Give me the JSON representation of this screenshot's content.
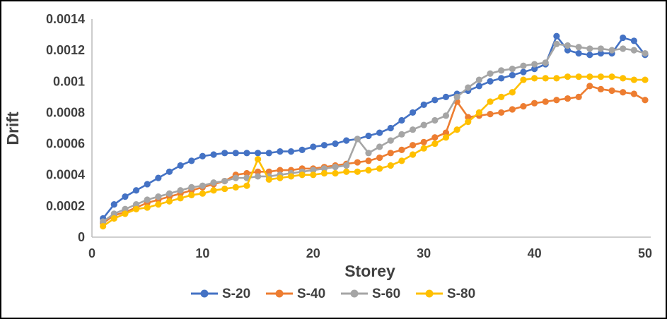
{
  "chart_data": {
    "type": "line",
    "title": "",
    "xlabel": "Storey",
    "ylabel": "Drift",
    "xlim": [
      0,
      50
    ],
    "ylim": [
      0,
      0.0014
    ],
    "grid": false,
    "markers": true,
    "legend_position": "bottom",
    "axis_line_color": "#BFBFBF",
    "text_color": "#404040",
    "x_ticks": [
      {
        "label": "0",
        "v": 0
      },
      {
        "label": "10",
        "v": 10
      },
      {
        "label": "20",
        "v": 20
      },
      {
        "label": "30",
        "v": 30
      },
      {
        "label": "40",
        "v": 40
      },
      {
        "label": "50",
        "v": 50
      }
    ],
    "y_ticks": [
      {
        "label": "0",
        "v": 0
      },
      {
        "label": "0.0002",
        "v": 0.0002
      },
      {
        "label": "0.0004",
        "v": 0.0004
      },
      {
        "label": "0.0006",
        "v": 0.0006
      },
      {
        "label": "0.0008",
        "v": 0.0008
      },
      {
        "label": "0.001",
        "v": 0.001
      },
      {
        "label": "0.0012",
        "v": 0.0012
      },
      {
        "label": "0.0014",
        "v": 0.0014
      }
    ],
    "x_values": [
      1,
      2,
      3,
      4,
      5,
      6,
      7,
      8,
      9,
      10,
      11,
      12,
      13,
      14,
      15,
      16,
      17,
      18,
      19,
      20,
      21,
      22,
      23,
      24,
      25,
      26,
      27,
      28,
      29,
      30,
      31,
      32,
      33,
      34,
      35,
      36,
      37,
      38,
      39,
      40,
      41,
      42,
      43,
      44,
      45,
      46,
      47,
      48,
      49,
      50
    ],
    "series": [
      {
        "name": "S-20",
        "color": "#4472C4",
        "values": [
          0.00012,
          0.00021,
          0.00026,
          0.0003,
          0.00034,
          0.00038,
          0.00042,
          0.00046,
          0.00049,
          0.00052,
          0.00053,
          0.00054,
          0.00054,
          0.00054,
          0.00054,
          0.00054,
          0.00055,
          0.00055,
          0.00056,
          0.00058,
          0.00059,
          0.0006,
          0.00062,
          0.00063,
          0.00065,
          0.00067,
          0.0007,
          0.00075,
          0.0008,
          0.00085,
          0.00088,
          0.0009,
          0.00092,
          0.00094,
          0.00097,
          0.001,
          0.00102,
          0.00104,
          0.00106,
          0.00108,
          0.00111,
          0.00129,
          0.0012,
          0.00118,
          0.00117,
          0.00118,
          0.00118,
          0.00128,
          0.00126,
          0.00117
        ]
      },
      {
        "name": "S-40",
        "color": "#ED7D31",
        "values": [
          9e-05,
          0.00014,
          0.00016,
          0.00019,
          0.00022,
          0.00024,
          0.00026,
          0.00028,
          0.0003,
          0.00032,
          0.00034,
          0.00036,
          0.0004,
          0.00041,
          0.00042,
          0.00042,
          0.00043,
          0.00043,
          0.00044,
          0.00044,
          0.00045,
          0.00046,
          0.00047,
          0.00048,
          0.00049,
          0.00051,
          0.00054,
          0.00056,
          0.00059,
          0.00061,
          0.00064,
          0.00067,
          0.00087,
          0.00077,
          0.00078,
          0.00079,
          0.0008,
          0.00082,
          0.00084,
          0.00086,
          0.00087,
          0.00088,
          0.00089,
          0.0009,
          0.00097,
          0.00095,
          0.00094,
          0.00093,
          0.00092,
          0.00088
        ]
      },
      {
        "name": "S-60",
        "color": "#A5A5A5",
        "values": [
          0.0001,
          0.00015,
          0.00018,
          0.00021,
          0.00024,
          0.00026,
          0.00028,
          0.0003,
          0.00032,
          0.00033,
          0.00035,
          0.00036,
          0.00038,
          0.00038,
          0.00039,
          0.00039,
          0.0004,
          0.00041,
          0.00042,
          0.00043,
          0.00044,
          0.00045,
          0.00046,
          0.00063,
          0.00054,
          0.00058,
          0.00062,
          0.00066,
          0.00069,
          0.00072,
          0.00075,
          0.00078,
          0.0009,
          0.00096,
          0.00101,
          0.00105,
          0.00107,
          0.00108,
          0.0011,
          0.00111,
          0.00112,
          0.00124,
          0.00123,
          0.00122,
          0.00121,
          0.00121,
          0.0012,
          0.00121,
          0.0012,
          0.00118
        ]
      },
      {
        "name": "S-80",
        "color": "#FFC000",
        "values": [
          7e-05,
          0.00012,
          0.00015,
          0.00018,
          0.00019,
          0.00021,
          0.00023,
          0.00025,
          0.00027,
          0.00028,
          0.0003,
          0.00031,
          0.00032,
          0.00033,
          0.0005,
          0.00037,
          0.00038,
          0.00039,
          0.0004,
          0.0004,
          0.00041,
          0.00041,
          0.00042,
          0.00042,
          0.00043,
          0.00044,
          0.00046,
          0.00049,
          0.00053,
          0.00057,
          0.0006,
          0.00064,
          0.00069,
          0.00074,
          0.0008,
          0.00087,
          0.0009,
          0.00093,
          0.00101,
          0.00102,
          0.00102,
          0.00102,
          0.00103,
          0.00103,
          0.00103,
          0.00103,
          0.00103,
          0.00102,
          0.00101,
          0.00101
        ]
      }
    ]
  }
}
